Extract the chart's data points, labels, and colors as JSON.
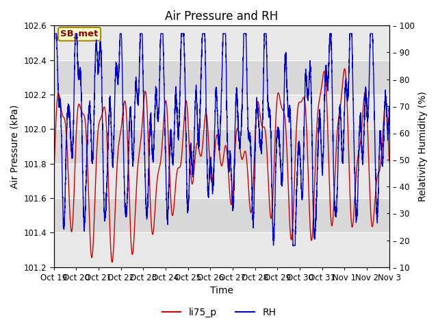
{
  "title": "Air Pressure and RH",
  "xlabel": "Time",
  "ylabel_left": "Air Pressure (kPa)",
  "ylabel_right": "Relativity Humidity (%)",
  "ylim_left": [
    101.2,
    102.6
  ],
  "ylim_right": [
    10,
    100
  ],
  "yticks_left": [
    101.2,
    101.4,
    101.6,
    101.8,
    102.0,
    102.2,
    102.4,
    102.6
  ],
  "yticks_right": [
    10,
    20,
    30,
    40,
    50,
    60,
    70,
    80,
    90,
    100
  ],
  "xtick_labels": [
    "Oct 19",
    "Oct 20",
    "Oct 21",
    "Oct 22",
    "Oct 23",
    "Oct 24",
    "Oct 25",
    "Oct 26",
    "Oct 27",
    "Oct 28",
    "Oct 29",
    "Oct 30",
    "Oct 31",
    "Nov 1",
    "Nov 2",
    "Nov 3"
  ],
  "legend_labels": [
    "li75_p",
    "RH"
  ],
  "legend_colors": [
    "#cc0000",
    "#0000cc"
  ],
  "annotation_text": "SB_met",
  "annotation_bbox_facecolor": "#ffffcc",
  "annotation_bbox_edgecolor": "#aa8800",
  "background_color": "#ffffff",
  "plot_bg_color": "#d8d8d8",
  "grid_color": "#ffffff",
  "title_fontsize": 12,
  "axis_label_fontsize": 10,
  "tick_fontsize": 8.5
}
